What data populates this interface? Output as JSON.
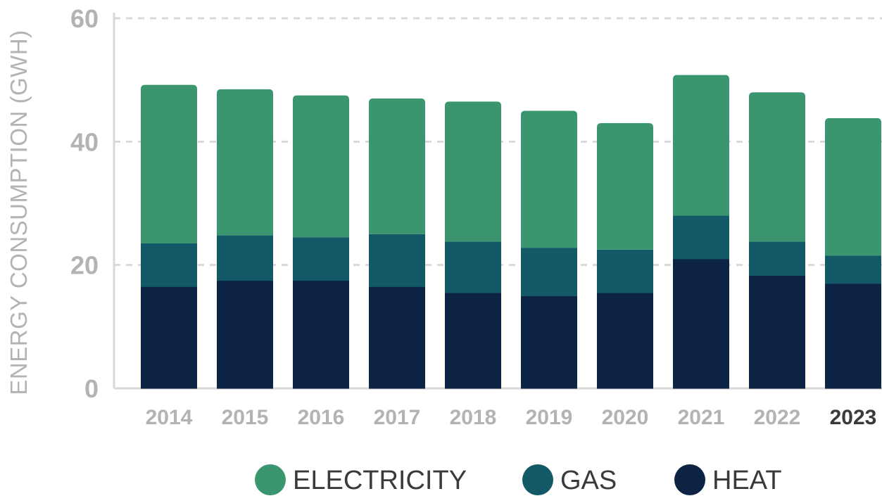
{
  "chart_data": {
    "type": "bar",
    "stacked": true,
    "ylabel": "ENERGY CONSUMPTION (GWH)",
    "xlabel": "",
    "ylim": [
      0,
      60
    ],
    "yticks": [
      "0",
      "20",
      "40",
      "60"
    ],
    "grid": true,
    "legend_position": "bottom",
    "categories": [
      "2014",
      "2015",
      "2016",
      "2017",
      "2018",
      "2019",
      "2020",
      "2021",
      "2022",
      "2023"
    ],
    "highlight_category": "2023",
    "series": [
      {
        "name": "HEAT",
        "color": "#0d2344",
        "values": [
          16.5,
          17.5,
          17.5,
          16.5,
          15.5,
          15.0,
          15.5,
          21.0,
          18.3,
          17.0
        ]
      },
      {
        "name": "GAS",
        "color": "#135866",
        "values": [
          7.0,
          7.3,
          7.0,
          8.5,
          8.3,
          7.8,
          7.0,
          7.0,
          5.5,
          4.5
        ]
      },
      {
        "name": "ELECTRICITY",
        "color": "#3b9670",
        "values": [
          25.7,
          23.7,
          23.0,
          22.0,
          22.7,
          22.2,
          20.5,
          22.8,
          24.2,
          22.3
        ]
      }
    ],
    "legend_order": [
      "ELECTRICITY",
      "GAS",
      "HEAT"
    ]
  }
}
